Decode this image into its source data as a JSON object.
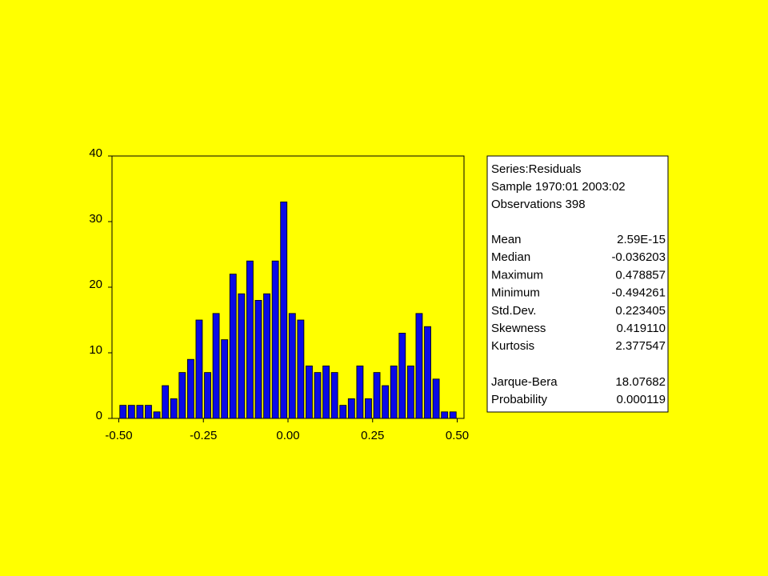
{
  "chart_data": {
    "type": "histogram",
    "bins": [
      -0.5,
      -0.475,
      -0.45,
      -0.425,
      -0.4,
      -0.375,
      -0.35,
      -0.325,
      -0.3,
      -0.275,
      -0.25,
      -0.225,
      -0.2,
      -0.175,
      -0.15,
      -0.125,
      -0.1,
      -0.075,
      -0.05,
      -0.025,
      0,
      0.025,
      0.05,
      0.075,
      0.1,
      0.125,
      0.15,
      0.175,
      0.2,
      0.225,
      0.25,
      0.275,
      0.3,
      0.325,
      0.35,
      0.375,
      0.4,
      0.425,
      0.45,
      0.475,
      0.5
    ],
    "values": [
      2,
      2,
      2,
      2,
      1,
      5,
      3,
      7,
      9,
      15,
      7,
      16,
      12,
      22,
      19,
      24,
      18,
      19,
      24,
      33,
      16,
      15,
      8,
      7,
      8,
      7,
      2,
      3,
      8,
      3,
      7,
      5,
      8,
      13,
      8,
      16,
      14,
      6,
      1,
      1
    ],
    "color": "#0a0ae6",
    "xlim": [
      -0.52,
      0.52
    ],
    "xticks": [
      {
        "value": -0.5,
        "label": "-0.50"
      },
      {
        "value": -0.25,
        "label": "-0.25"
      },
      {
        "value": 0,
        "label": "0.00"
      },
      {
        "value": 0.25,
        "label": "0.25"
      },
      {
        "value": 0.5,
        "label": "0.50"
      }
    ],
    "ylim": [
      0,
      40
    ],
    "yticks": [
      0,
      10,
      20,
      30,
      40
    ],
    "stats": {
      "header": [
        "Series:Residuals",
        "Sample 1970:01 2003:02",
        "Observations 398"
      ],
      "rows": [
        [
          "Mean",
          "2.59E-15"
        ],
        [
          "Median",
          "-0.036203"
        ],
        [
          "Maximum",
          "0.478857"
        ],
        [
          "Minimum",
          "-0.494261"
        ],
        [
          "Std.Dev.",
          "0.223405"
        ],
        [
          "Skewness",
          "0.419110"
        ],
        [
          "Kurtosis",
          "2.377547"
        ]
      ],
      "test_rows": [
        [
          "Jarque-Bera",
          "18.07682"
        ],
        [
          "Probability",
          "0.000119"
        ]
      ]
    }
  }
}
